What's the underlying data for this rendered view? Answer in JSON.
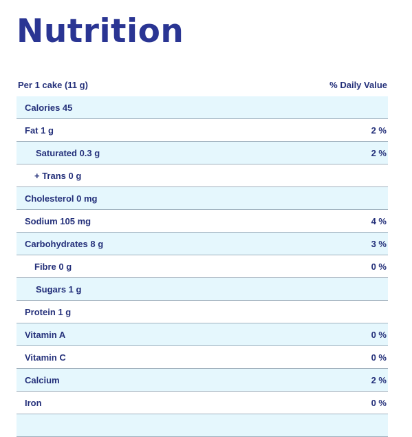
{
  "title": "Nutrition",
  "serving": "Per 1 cake (11 g)",
  "daily_value_header": "% Daily Value",
  "rows": [
    {
      "label": "Calories 45",
      "pct": ""
    },
    {
      "label": "Fat 1 g",
      "pct": "2 %"
    },
    {
      "label": "Saturated 0.3 g",
      "pct": "2 %"
    },
    {
      "label": "+ Trans 0 g",
      "pct": ""
    },
    {
      "label": "Cholesterol 0 mg",
      "pct": ""
    },
    {
      "label": "Sodium 105 mg",
      "pct": "4 %"
    },
    {
      "label": "Carbohydrates 8 g",
      "pct": "3 %"
    },
    {
      "label": "Fibre 0 g",
      "pct": "0 %"
    },
    {
      "label": "Sugars 1 g",
      "pct": ""
    },
    {
      "label": "Protein 1 g",
      "pct": ""
    },
    {
      "label": "Vitamin A",
      "pct": "0 %"
    },
    {
      "label": "Vitamin C",
      "pct": "0 %"
    },
    {
      "label": "Calcium",
      "pct": "2 %"
    },
    {
      "label": "Iron",
      "pct": "0 %"
    },
    {
      "label": "",
      "pct": ""
    }
  ],
  "colors": {
    "title": "#2a3593",
    "text": "#24307a",
    "shaded_row": "#e5f7fd",
    "divider": "#9fb0bd"
  }
}
